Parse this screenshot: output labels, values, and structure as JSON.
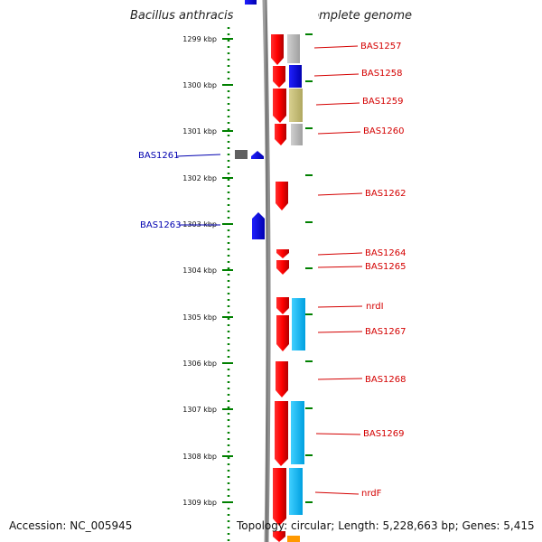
{
  "title": "Bacillus anthracis str. Sterne, complete genome",
  "footer": {
    "accession": "Accession: NC_005945",
    "stats": "Topology: circular; Length: 5,228,663 bp; Genes: 5,415"
  },
  "ruler": {
    "ticks": [
      "1299 kbp",
      "1300 kbp",
      "1301 kbp",
      "1302 kbp",
      "1303 kbp",
      "1304 kbp",
      "1305 kbp",
      "1306 kbp",
      "1307 kbp",
      "1308 kbp",
      "1309 kbp"
    ]
  },
  "genes": {
    "right": [
      {
        "label": "BAS1257",
        "color": "#d40000"
      },
      {
        "label": "BAS1258",
        "color": "#d40000"
      },
      {
        "label": "BAS1259",
        "color": "#d40000"
      },
      {
        "label": "BAS1260",
        "color": "#d40000"
      },
      {
        "label": "BAS1262",
        "color": "#d40000"
      },
      {
        "label": "BAS1264",
        "color": "#d40000"
      },
      {
        "label": "BAS1265",
        "color": "#d40000"
      },
      {
        "label": "nrdI",
        "color": "#d40000"
      },
      {
        "label": "BAS1267",
        "color": "#d40000"
      },
      {
        "label": "BAS1268",
        "color": "#d40000"
      },
      {
        "label": "BAS1269",
        "color": "#d40000"
      },
      {
        "label": "nrdF",
        "color": "#d40000"
      }
    ],
    "left": [
      {
        "label": "BAS1261",
        "color": "#0000b0"
      },
      {
        "label": "BAS1263",
        "color": "#0000b0"
      }
    ]
  },
  "colors": {
    "forward_gene": "#ff0000",
    "reverse_gene": "#0000ff",
    "cog_gray": "#b8b8b8",
    "cog_blue": "#0000ff",
    "cog_olive": "#c8c080",
    "cog_cyan": "#00b8f0",
    "backbone": "#808080",
    "tick_green": "#008000"
  }
}
